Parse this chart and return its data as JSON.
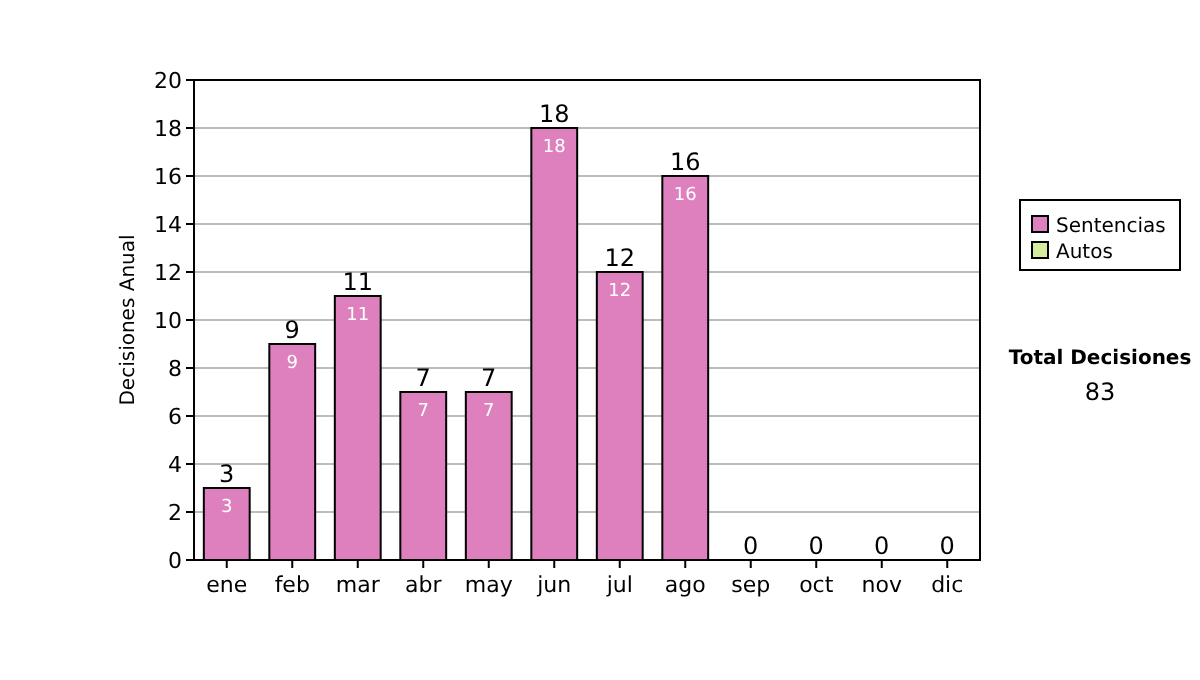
{
  "chart_data": {
    "type": "bar",
    "ylabel": "Decisiones Anual",
    "categories": [
      "ene",
      "feb",
      "mar",
      "abr",
      "may",
      "jun",
      "jul",
      "ago",
      "sep",
      "oct",
      "nov",
      "dic"
    ],
    "series": [
      {
        "name": "Sentencias",
        "color": "#dd80bd",
        "values": [
          3,
          9,
          11,
          7,
          7,
          18,
          12,
          16,
          0,
          0,
          0,
          0
        ],
        "value_labels": [
          "3",
          "9",
          "11",
          "7",
          "7",
          "18",
          "12",
          "16",
          null,
          null,
          null,
          null
        ]
      },
      {
        "name": "Autos",
        "color": "#d4eba0",
        "values": [
          0,
          0,
          0,
          0,
          0,
          0,
          0,
          0,
          0,
          0,
          0,
          0
        ]
      }
    ],
    "stacked": true,
    "totals": [
      "3",
      "9",
      "11",
      "7",
      "7",
      "18",
      "12",
      "16",
      "0",
      "0",
      "0",
      "0"
    ],
    "ylim": [
      0,
      20
    ],
    "yticks": [
      0,
      2,
      4,
      6,
      8,
      10,
      12,
      14,
      16,
      18,
      20
    ],
    "grid": "y",
    "legend": "right",
    "annotations": [
      "Total Decisiones",
      "83"
    ]
  }
}
